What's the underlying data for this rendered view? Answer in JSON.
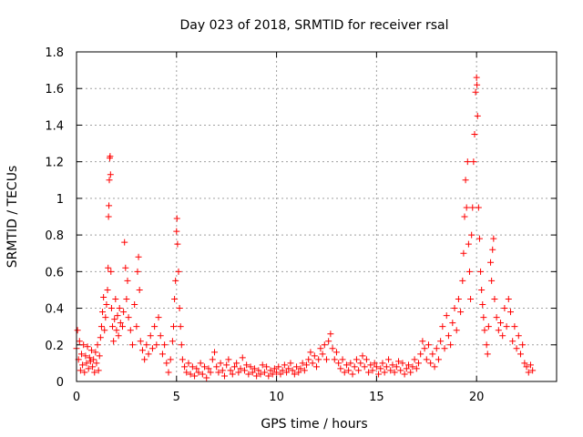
{
  "chart_data": {
    "type": "scatter",
    "title": "Day 023 of 2018, SRMTID for receiver rsal",
    "xlabel": "GPS time / hours",
    "ylabel": "SRMTID / TECUs",
    "xlim": [
      0,
      24
    ],
    "ylim": [
      0,
      1.8
    ],
    "x_ticks": [
      0,
      5,
      10,
      15,
      20
    ],
    "x_tick_labels": [
      "0",
      "5",
      "10",
      "15",
      "20"
    ],
    "y_ticks": [
      0,
      0.2,
      0.4,
      0.6,
      0.8,
      1,
      1.2,
      1.4,
      1.6,
      1.8
    ],
    "y_tick_labels": [
      "0",
      "0.2",
      "0.4",
      "0.6",
      "0.8",
      "1",
      "1.2",
      "1.4",
      "1.6",
      "1.8"
    ],
    "grid": true,
    "marker": "+",
    "color": "#ff0000",
    "series": [
      {
        "name": "SRMTID",
        "points": [
          [
            0.0,
            0.18
          ],
          [
            0.05,
            0.28
          ],
          [
            0.1,
            0.12
          ],
          [
            0.15,
            0.22
          ],
          [
            0.2,
            0.06
          ],
          [
            0.25,
            0.15
          ],
          [
            0.3,
            0.09
          ],
          [
            0.35,
            0.2
          ],
          [
            0.4,
            0.05
          ],
          [
            0.45,
            0.14
          ],
          [
            0.5,
            0.1
          ],
          [
            0.55,
            0.19
          ],
          [
            0.6,
            0.07
          ],
          [
            0.65,
            0.13
          ],
          [
            0.7,
            0.11
          ],
          [
            0.75,
            0.17
          ],
          [
            0.8,
            0.08
          ],
          [
            0.85,
            0.12
          ],
          [
            0.9,
            0.05
          ],
          [
            0.95,
            0.16
          ],
          [
            1.0,
            0.1
          ],
          [
            1.05,
            0.2
          ],
          [
            1.1,
            0.06
          ],
          [
            1.15,
            0.14
          ],
          [
            1.2,
            0.24
          ],
          [
            1.25,
            0.3
          ],
          [
            1.3,
            0.38
          ],
          [
            1.35,
            0.46
          ],
          [
            1.4,
            0.28
          ],
          [
            1.45,
            0.35
          ],
          [
            1.5,
            0.42
          ],
          [
            1.55,
            0.5
          ],
          [
            1.58,
            0.62
          ],
          [
            1.6,
            0.9
          ],
          [
            1.62,
            0.96
          ],
          [
            1.64,
            1.1
          ],
          [
            1.66,
            1.22
          ],
          [
            1.68,
            1.23
          ],
          [
            1.7,
            1.13
          ],
          [
            1.72,
            0.6
          ],
          [
            1.75,
            0.4
          ],
          [
            1.8,
            0.3
          ],
          [
            1.85,
            0.22
          ],
          [
            1.9,
            0.34
          ],
          [
            1.95,
            0.45
          ],
          [
            2.0,
            0.28
          ],
          [
            2.05,
            0.36
          ],
          [
            2.1,
            0.25
          ],
          [
            2.15,
            0.4
          ],
          [
            2.2,
            0.32
          ],
          [
            2.3,
            0.3
          ],
          [
            2.35,
            0.38
          ],
          [
            2.4,
            0.76
          ],
          [
            2.45,
            0.62
          ],
          [
            2.5,
            0.45
          ],
          [
            2.55,
            0.55
          ],
          [
            2.6,
            0.35
          ],
          [
            2.7,
            0.28
          ],
          [
            2.8,
            0.2
          ],
          [
            2.9,
            0.42
          ],
          [
            3.0,
            0.3
          ],
          [
            3.05,
            0.6
          ],
          [
            3.1,
            0.68
          ],
          [
            3.15,
            0.5
          ],
          [
            3.2,
            0.22
          ],
          [
            3.3,
            0.17
          ],
          [
            3.4,
            0.12
          ],
          [
            3.5,
            0.2
          ],
          [
            3.6,
            0.15
          ],
          [
            3.7,
            0.25
          ],
          [
            3.8,
            0.18
          ],
          [
            3.9,
            0.3
          ],
          [
            4.0,
            0.2
          ],
          [
            4.1,
            0.35
          ],
          [
            4.2,
            0.25
          ],
          [
            4.3,
            0.15
          ],
          [
            4.4,
            0.2
          ],
          [
            4.5,
            0.1
          ],
          [
            4.6,
            0.05
          ],
          [
            4.7,
            0.12
          ],
          [
            4.8,
            0.22
          ],
          [
            4.85,
            0.3
          ],
          [
            4.9,
            0.45
          ],
          [
            4.95,
            0.55
          ],
          [
            5.0,
            0.82
          ],
          [
            5.02,
            0.89
          ],
          [
            5.05,
            0.75
          ],
          [
            5.1,
            0.6
          ],
          [
            5.15,
            0.4
          ],
          [
            5.2,
            0.3
          ],
          [
            5.25,
            0.2
          ],
          [
            5.3,
            0.12
          ],
          [
            5.4,
            0.08
          ],
          [
            5.5,
            0.05
          ],
          [
            5.6,
            0.1
          ],
          [
            5.7,
            0.04
          ],
          [
            5.8,
            0.08
          ],
          [
            5.9,
            0.03
          ],
          [
            6.0,
            0.07
          ],
          [
            6.1,
            0.05
          ],
          [
            6.2,
            0.1
          ],
          [
            6.3,
            0.04
          ],
          [
            6.4,
            0.08
          ],
          [
            6.5,
            0.02
          ],
          [
            6.6,
            0.07
          ],
          [
            6.7,
            0.05
          ],
          [
            6.8,
            0.12
          ],
          [
            6.9,
            0.16
          ],
          [
            7.0,
            0.08
          ],
          [
            7.1,
            0.05
          ],
          [
            7.2,
            0.1
          ],
          [
            7.3,
            0.06
          ],
          [
            7.4,
            0.03
          ],
          [
            7.5,
            0.09
          ],
          [
            7.6,
            0.12
          ],
          [
            7.7,
            0.06
          ],
          [
            7.8,
            0.04
          ],
          [
            7.9,
            0.08
          ],
          [
            8.0,
            0.1
          ],
          [
            8.1,
            0.05
          ],
          [
            8.2,
            0.07
          ],
          [
            8.3,
            0.13
          ],
          [
            8.4,
            0.06
          ],
          [
            8.5,
            0.09
          ],
          [
            8.6,
            0.04
          ],
          [
            8.7,
            0.08
          ],
          [
            8.8,
            0.05
          ],
          [
            8.9,
            0.07
          ],
          [
            9.0,
            0.03
          ],
          [
            9.1,
            0.06
          ],
          [
            9.2,
            0.04
          ],
          [
            9.3,
            0.09
          ],
          [
            9.4,
            0.05
          ],
          [
            9.5,
            0.08
          ],
          [
            9.6,
            0.03
          ],
          [
            9.7,
            0.06
          ],
          [
            9.8,
            0.04
          ],
          [
            9.9,
            0.07
          ],
          [
            10.0,
            0.05
          ],
          [
            10.1,
            0.08
          ],
          [
            10.2,
            0.04
          ],
          [
            10.3,
            0.06
          ],
          [
            10.4,
            0.09
          ],
          [
            10.5,
            0.05
          ],
          [
            10.6,
            0.07
          ],
          [
            10.7,
            0.1
          ],
          [
            10.8,
            0.06
          ],
          [
            10.9,
            0.04
          ],
          [
            11.0,
            0.08
          ],
          [
            11.1,
            0.05
          ],
          [
            11.2,
            0.07
          ],
          [
            11.3,
            0.1
          ],
          [
            11.4,
            0.06
          ],
          [
            11.5,
            0.09
          ],
          [
            11.6,
            0.12
          ],
          [
            11.7,
            0.16
          ],
          [
            11.8,
            0.1
          ],
          [
            11.9,
            0.14
          ],
          [
            12.0,
            0.08
          ],
          [
            12.1,
            0.12
          ],
          [
            12.2,
            0.18
          ],
          [
            12.3,
            0.15
          ],
          [
            12.4,
            0.2
          ],
          [
            12.5,
            0.12
          ],
          [
            12.6,
            0.22
          ],
          [
            12.7,
            0.26
          ],
          [
            12.8,
            0.18
          ],
          [
            12.9,
            0.12
          ],
          [
            13.0,
            0.16
          ],
          [
            13.1,
            0.1
          ],
          [
            13.2,
            0.07
          ],
          [
            13.3,
            0.12
          ],
          [
            13.4,
            0.05
          ],
          [
            13.5,
            0.09
          ],
          [
            13.6,
            0.06
          ],
          [
            13.7,
            0.1
          ],
          [
            13.8,
            0.04
          ],
          [
            13.9,
            0.08
          ],
          [
            14.0,
            0.12
          ],
          [
            14.1,
            0.06
          ],
          [
            14.2,
            0.1
          ],
          [
            14.3,
            0.14
          ],
          [
            14.4,
            0.08
          ],
          [
            14.5,
            0.12
          ],
          [
            14.6,
            0.05
          ],
          [
            14.7,
            0.09
          ],
          [
            14.8,
            0.06
          ],
          [
            14.9,
            0.1
          ],
          [
            15.0,
            0.08
          ],
          [
            15.1,
            0.04
          ],
          [
            15.2,
            0.07
          ],
          [
            15.3,
            0.1
          ],
          [
            15.4,
            0.05
          ],
          [
            15.5,
            0.08
          ],
          [
            15.6,
            0.12
          ],
          [
            15.7,
            0.06
          ],
          [
            15.8,
            0.09
          ],
          [
            15.9,
            0.05
          ],
          [
            16.0,
            0.08
          ],
          [
            16.1,
            0.11
          ],
          [
            16.2,
            0.06
          ],
          [
            16.3,
            0.1
          ],
          [
            16.4,
            0.04
          ],
          [
            16.5,
            0.07
          ],
          [
            16.6,
            0.09
          ],
          [
            16.7,
            0.05
          ],
          [
            16.8,
            0.08
          ],
          [
            16.9,
            0.12
          ],
          [
            17.0,
            0.07
          ],
          [
            17.1,
            0.1
          ],
          [
            17.2,
            0.15
          ],
          [
            17.3,
            0.22
          ],
          [
            17.4,
            0.18
          ],
          [
            17.5,
            0.12
          ],
          [
            17.6,
            0.2
          ],
          [
            17.7,
            0.1
          ],
          [
            17.8,
            0.15
          ],
          [
            17.9,
            0.08
          ],
          [
            18.0,
            0.18
          ],
          [
            18.1,
            0.12
          ],
          [
            18.2,
            0.22
          ],
          [
            18.3,
            0.3
          ],
          [
            18.4,
            0.18
          ],
          [
            18.5,
            0.36
          ],
          [
            18.6,
            0.25
          ],
          [
            18.7,
            0.2
          ],
          [
            18.8,
            0.32
          ],
          [
            18.9,
            0.4
          ],
          [
            19.0,
            0.28
          ],
          [
            19.1,
            0.45
          ],
          [
            19.2,
            0.38
          ],
          [
            19.3,
            0.55
          ],
          [
            19.35,
            0.7
          ],
          [
            19.4,
            0.9
          ],
          [
            19.45,
            1.1
          ],
          [
            19.5,
            0.95
          ],
          [
            19.55,
            1.2
          ],
          [
            19.6,
            0.75
          ],
          [
            19.65,
            0.6
          ],
          [
            19.7,
            0.45
          ],
          [
            19.75,
            0.8
          ],
          [
            19.8,
            0.95
          ],
          [
            19.85,
            1.2
          ],
          [
            19.9,
            1.35
          ],
          [
            19.95,
            1.58
          ],
          [
            20.0,
            1.66
          ],
          [
            20.02,
            1.62
          ],
          [
            20.05,
            1.45
          ],
          [
            20.1,
            0.95
          ],
          [
            20.15,
            0.78
          ],
          [
            20.2,
            0.6
          ],
          [
            20.25,
            0.5
          ],
          [
            20.3,
            0.42
          ],
          [
            20.35,
            0.35
          ],
          [
            20.4,
            0.28
          ],
          [
            20.5,
            0.2
          ],
          [
            20.55,
            0.15
          ],
          [
            20.6,
            0.3
          ],
          [
            20.7,
            0.65
          ],
          [
            20.75,
            0.55
          ],
          [
            20.8,
            0.72
          ],
          [
            20.85,
            0.78
          ],
          [
            20.9,
            0.45
          ],
          [
            21.0,
            0.35
          ],
          [
            21.1,
            0.28
          ],
          [
            21.2,
            0.32
          ],
          [
            21.3,
            0.25
          ],
          [
            21.4,
            0.4
          ],
          [
            21.5,
            0.3
          ],
          [
            21.6,
            0.45
          ],
          [
            21.7,
            0.38
          ],
          [
            21.8,
            0.22
          ],
          [
            21.9,
            0.3
          ],
          [
            22.0,
            0.18
          ],
          [
            22.1,
            0.25
          ],
          [
            22.2,
            0.15
          ],
          [
            22.3,
            0.2
          ],
          [
            22.4,
            0.1
          ],
          [
            22.5,
            0.08
          ],
          [
            22.6,
            0.05
          ],
          [
            22.7,
            0.09
          ],
          [
            22.8,
            0.06
          ]
        ]
      }
    ]
  }
}
